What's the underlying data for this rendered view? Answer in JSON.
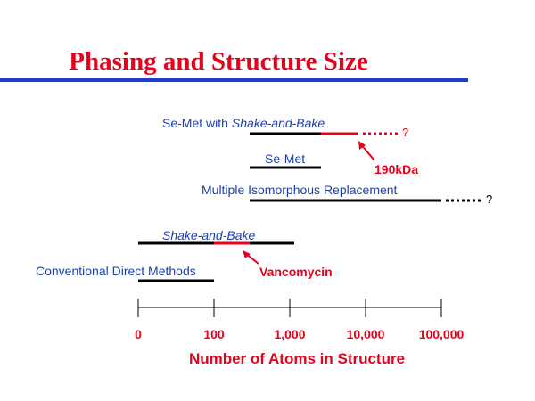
{
  "title": "Phasing and Structure Size",
  "rows": [
    {
      "label": "Se-Met with",
      "label_italic": "Shake-and-Bake",
      "mark": "?"
    },
    {
      "label": "Se-Met"
    },
    {
      "label": "Multiple Isomorphous Replacement",
      "mark": "?"
    },
    {
      "label_italic": "Shake-and-Bake"
    },
    {
      "label": "Conventional Direct Methods"
    }
  ],
  "annotations": [
    "190kDa",
    "Vancomycin"
  ],
  "axis": {
    "ticks": [
      "0",
      "100",
      "1,000",
      "10,000",
      "100,000"
    ],
    "label": "Number of Atoms in Structure"
  }
}
